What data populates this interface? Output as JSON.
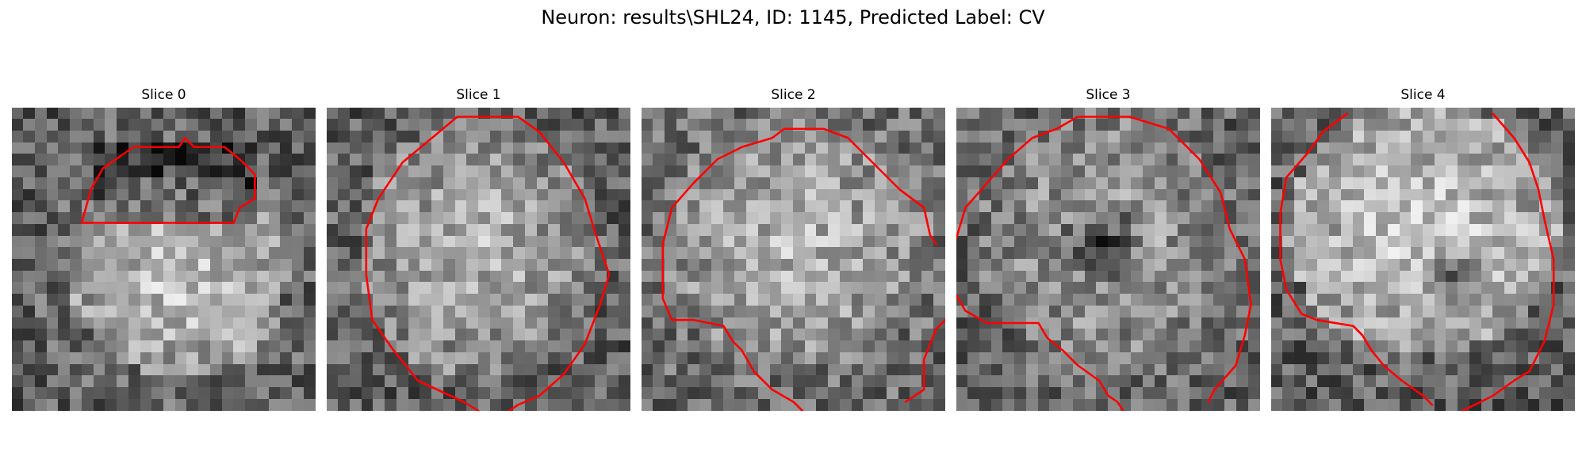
{
  "figure": {
    "title": "Neuron: results\\SHL24, ID: 1145, Predicted Label: CV",
    "panels": [
      {
        "title": "Slice 0"
      },
      {
        "title": "Slice 1"
      },
      {
        "title": "Slice 2"
      },
      {
        "title": "Slice 3"
      },
      {
        "title": "Slice 4"
      }
    ],
    "image_colormap": "gray",
    "contour_color": "#ff0000"
  }
}
